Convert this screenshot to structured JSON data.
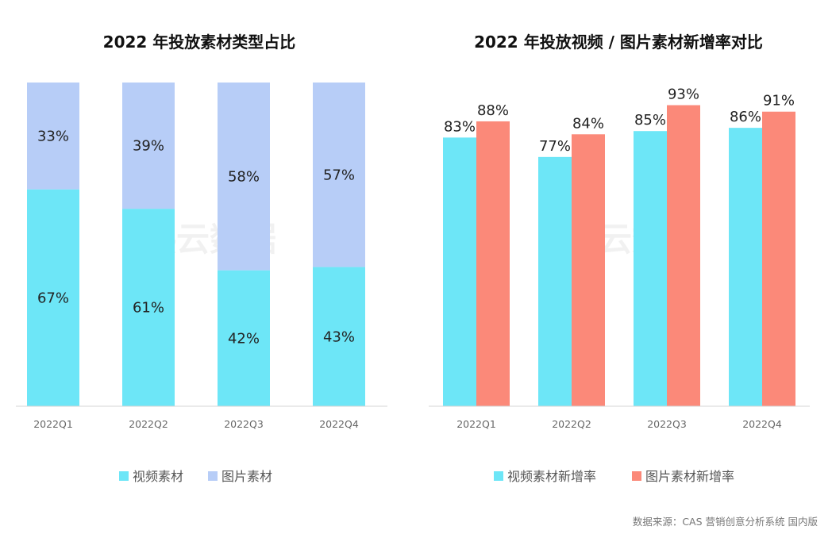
{
  "watermark": "热云数据",
  "source": "数据来源：CAS 营销创意分析系统 国内版",
  "colors": {
    "video": "#6de6f7",
    "image": "#b7cdf7",
    "image_growth": "#fb8979"
  },
  "chart_data": [
    {
      "type": "bar",
      "stacked": true,
      "title": "2022 年投放素材类型占比",
      "categories": [
        "2022Q1",
        "2022Q2",
        "2022Q3",
        "2022Q4"
      ],
      "series": [
        {
          "name": "视频素材",
          "values": [
            67,
            61,
            42,
            43
          ],
          "labels": [
            "67%",
            "61%",
            "42%",
            "43%"
          ]
        },
        {
          "name": "图片素材",
          "values": [
            33,
            39,
            58,
            57
          ],
          "labels": [
            "33%",
            "39%",
            "58%",
            "57%"
          ]
        }
      ],
      "ylim": [
        0,
        100
      ],
      "legend": "bottom"
    },
    {
      "type": "bar",
      "stacked": false,
      "title": "2022 年投放视频 / 图片素材新增率对比",
      "categories": [
        "2022Q1",
        "2022Q2",
        "2022Q3",
        "2022Q4"
      ],
      "series": [
        {
          "name": "视频素材新增率",
          "values": [
            83,
            77,
            85,
            86
          ],
          "labels": [
            "83%",
            "77%",
            "85%",
            "86%"
          ]
        },
        {
          "name": "图片素材新增率",
          "values": [
            88,
            84,
            93,
            91
          ],
          "labels": [
            "88%",
            "84%",
            "93%",
            "91%"
          ]
        }
      ],
      "ylim": [
        0,
        100
      ],
      "legend": "bottom"
    }
  ]
}
